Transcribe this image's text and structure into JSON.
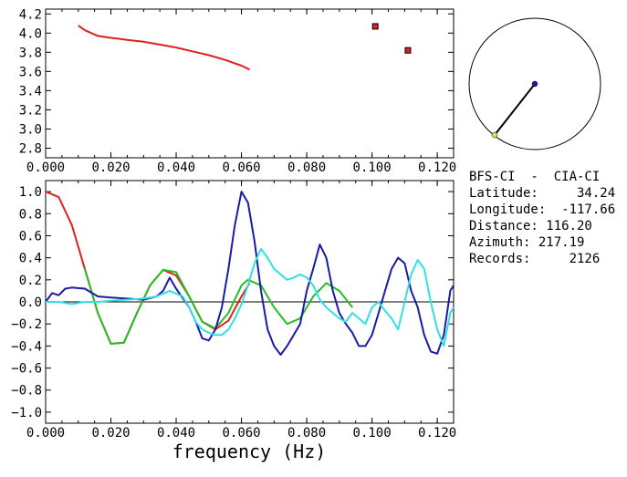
{
  "title": "",
  "info": {
    "station_pair": "BFS-CI  -  CIA-CI",
    "latitude": "Latitude:     34.24",
    "longitude": "Longitude:  -117.66",
    "distance": "Distance: 116.20",
    "azimuth": "Azimuth: 217.19",
    "records": "Records:     2126"
  },
  "colors": {
    "red": "#e02020",
    "green": "#22c022",
    "blue": "#1a1aa8",
    "cyan": "#33e0e0",
    "point_fill": "#e02020",
    "station_a": "#1a1aa8",
    "station_b": "#e0e060"
  },
  "map": {
    "type": "circle-map",
    "station_a_label": "",
    "station_b_label": ""
  },
  "chart_data": [
    {
      "type": "line",
      "panel": "top",
      "xlim": [
        0.0,
        0.125
      ],
      "ylim": [
        2.7,
        4.25
      ],
      "xticks": [
        "0.000",
        "0.020",
        "0.040",
        "0.060",
        "0.080",
        "0.100",
        "0.120"
      ],
      "yticks": [
        "2.8",
        "3.0",
        "3.2",
        "3.4",
        "3.6",
        "3.8",
        "4.0",
        "4.2"
      ],
      "xtick_values": [
        0.0,
        0.02,
        0.04,
        0.06,
        0.08,
        0.1,
        0.12
      ],
      "ytick_values": [
        2.8,
        3.0,
        3.2,
        3.4,
        3.6,
        3.8,
        4.0,
        4.2
      ],
      "series": [
        {
          "color": "red",
          "x": [
            0.01,
            0.012,
            0.014,
            0.016,
            0.02,
            0.025,
            0.03,
            0.035,
            0.04,
            0.045,
            0.05,
            0.055,
            0.06,
            0.0625
          ],
          "y": [
            4.08,
            4.03,
            4.0,
            3.97,
            3.95,
            3.93,
            3.91,
            3.88,
            3.85,
            3.81,
            3.77,
            3.72,
            3.66,
            3.62
          ]
        }
      ],
      "points": [
        {
          "x": 0.101,
          "y": 4.07
        },
        {
          "x": 0.111,
          "y": 3.82
        }
      ]
    },
    {
      "type": "line",
      "panel": "bottom",
      "xlabel": "frequency (Hz)",
      "xlim": [
        0.0,
        0.125
      ],
      "ylim": [
        -1.1,
        1.1
      ],
      "xticks": [
        "0.000",
        "0.020",
        "0.040",
        "0.060",
        "0.080",
        "0.100",
        "0.120"
      ],
      "yticks": [
        "−1.0",
        "−0.8",
        "−0.6",
        "−0.4",
        "−0.2",
        "0.0",
        "0.2",
        "0.4",
        "0.6",
        "0.8",
        "1.0"
      ],
      "xtick_values": [
        0.0,
        0.02,
        0.04,
        0.06,
        0.08,
        0.1,
        0.12
      ],
      "ytick_values": [
        -1.0,
        -0.8,
        -0.6,
        -0.4,
        -0.2,
        0.0,
        0.2,
        0.4,
        0.6,
        0.8,
        1.0
      ],
      "zero_line": true,
      "series": [
        {
          "color": "red",
          "x": [
            0.0,
            0.004,
            0.008,
            0.012,
            0.016,
            0.02,
            0.024,
            0.028,
            0.032,
            0.036,
            0.04,
            0.044,
            0.048,
            0.052,
            0.056,
            0.06,
            0.0625
          ],
          "y": [
            1.0,
            0.95,
            0.7,
            0.3,
            -0.1,
            -0.38,
            -0.37,
            -0.1,
            0.15,
            0.29,
            0.24,
            0.05,
            -0.18,
            -0.25,
            -0.17,
            0.05,
            0.17
          ]
        },
        {
          "color": "green",
          "x": [
            0.012,
            0.016,
            0.02,
            0.024,
            0.028,
            0.032,
            0.036,
            0.04,
            0.044,
            0.048,
            0.052,
            0.056,
            0.06,
            0.062,
            0.066,
            0.07,
            0.074,
            0.078,
            0.082,
            0.086,
            0.09,
            0.094
          ],
          "y": [
            0.3,
            -0.1,
            -0.38,
            -0.37,
            -0.1,
            0.15,
            0.29,
            0.27,
            0.05,
            -0.18,
            -0.24,
            -0.1,
            0.15,
            0.2,
            0.15,
            -0.05,
            -0.2,
            -0.15,
            0.05,
            0.17,
            0.1,
            -0.05
          ]
        },
        {
          "color": "blue",
          "x": [
            0.0,
            0.002,
            0.004,
            0.006,
            0.008,
            0.012,
            0.016,
            0.02,
            0.025,
            0.03,
            0.034,
            0.036,
            0.038,
            0.04,
            0.044,
            0.046,
            0.048,
            0.05,
            0.052,
            0.054,
            0.056,
            0.058,
            0.06,
            0.062,
            0.064,
            0.066,
            0.068,
            0.07,
            0.072,
            0.074,
            0.076,
            0.078,
            0.08,
            0.082,
            0.084,
            0.086,
            0.088,
            0.09,
            0.092,
            0.094,
            0.096,
            0.098,
            0.1,
            0.102,
            0.104,
            0.106,
            0.108,
            0.11,
            0.112,
            0.114,
            0.116,
            0.118,
            0.12,
            0.122,
            0.124,
            0.125
          ],
          "y": [
            0.0,
            0.08,
            0.06,
            0.12,
            0.13,
            0.12,
            0.05,
            0.04,
            0.03,
            0.02,
            0.05,
            0.1,
            0.22,
            0.12,
            -0.05,
            -0.18,
            -0.33,
            -0.35,
            -0.25,
            -0.05,
            0.3,
            0.7,
            1.0,
            0.9,
            0.55,
            0.1,
            -0.25,
            -0.4,
            -0.48,
            -0.4,
            -0.3,
            -0.2,
            0.1,
            0.3,
            0.52,
            0.4,
            0.1,
            -0.1,
            -0.2,
            -0.28,
            -0.4,
            -0.4,
            -0.3,
            -0.1,
            0.1,
            0.3,
            0.4,
            0.35,
            0.1,
            -0.05,
            -0.3,
            -0.45,
            -0.47,
            -0.3,
            0.1,
            0.15
          ]
        },
        {
          "color": "cyan",
          "x": [
            0.0,
            0.004,
            0.008,
            0.012,
            0.016,
            0.02,
            0.025,
            0.03,
            0.034,
            0.038,
            0.042,
            0.044,
            0.046,
            0.048,
            0.05,
            0.052,
            0.054,
            0.056,
            0.058,
            0.06,
            0.062,
            0.064,
            0.066,
            0.068,
            0.07,
            0.072,
            0.074,
            0.076,
            0.078,
            0.08,
            0.082,
            0.084,
            0.086,
            0.088,
            0.09,
            0.092,
            0.094,
            0.096,
            0.098,
            0.1,
            0.102,
            0.104,
            0.106,
            0.108,
            0.11,
            0.112,
            0.114,
            0.116,
            0.118,
            0.12,
            0.122,
            0.124,
            0.125
          ],
          "y": [
            0.0,
            0.0,
            -0.02,
            0.0,
            0.0,
            0.01,
            0.02,
            0.03,
            0.05,
            0.1,
            0.05,
            -0.05,
            -0.18,
            -0.25,
            -0.28,
            -0.3,
            -0.3,
            -0.25,
            -0.15,
            -0.02,
            0.15,
            0.35,
            0.48,
            0.4,
            0.3,
            0.25,
            0.2,
            0.22,
            0.25,
            0.22,
            0.15,
            0.02,
            -0.05,
            -0.1,
            -0.15,
            -0.18,
            -0.1,
            -0.15,
            -0.2,
            -0.05,
            0.0,
            -0.08,
            -0.15,
            -0.25,
            0.0,
            0.25,
            0.38,
            0.3,
            0.0,
            -0.25,
            -0.4,
            -0.1,
            -0.05
          ]
        }
      ]
    }
  ]
}
